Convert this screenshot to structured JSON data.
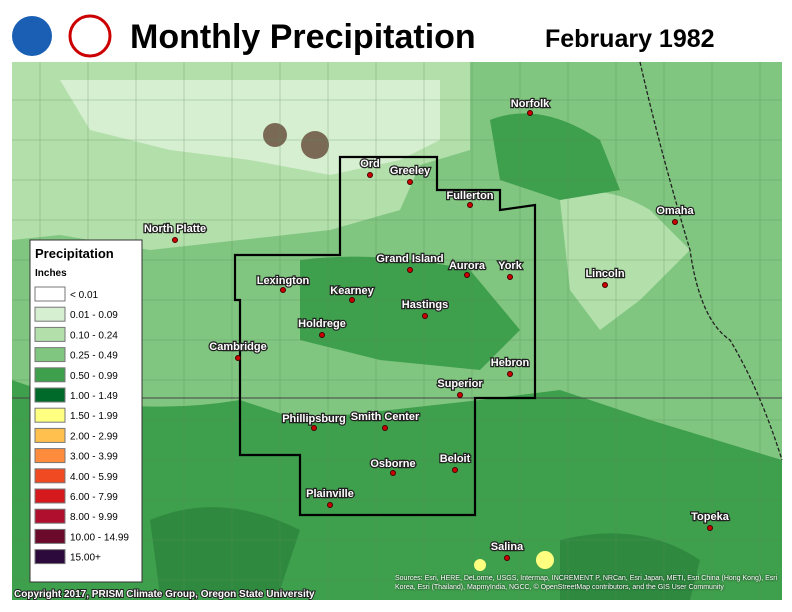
{
  "header": {
    "title": "Monthly Precipitation",
    "date": "February 1982"
  },
  "legend": {
    "title": "Precipitation",
    "unit": "Inches",
    "entries": [
      {
        "label": "< 0.01",
        "color": "#ffffff"
      },
      {
        "label": "0.01 - 0.09",
        "color": "#d6efd0"
      },
      {
        "label": "0.10 - 0.24",
        "color": "#b3dfab"
      },
      {
        "label": "0.25 - 0.49",
        "color": "#80c680"
      },
      {
        "label": "0.50 - 0.99",
        "color": "#3e9f4c"
      },
      {
        "label": "1.00 - 1.49",
        "color": "#006a2a"
      },
      {
        "label": "1.50 - 1.99",
        "color": "#ffff80"
      },
      {
        "label": "2.00 - 2.99",
        "color": "#ffc04d"
      },
      {
        "label": "3.00 - 3.99",
        "color": "#ff8c3c"
      },
      {
        "label": "4.00 - 5.99",
        "color": "#f04a23"
      },
      {
        "label": "6.00 - 7.99",
        "color": "#d6191c"
      },
      {
        "label": "8.00 - 9.99",
        "color": "#b0102e"
      },
      {
        "label": "10.00 - 14.99",
        "color": "#6b0a2a"
      },
      {
        "label": "15.00+",
        "color": "#2d0a3c"
      }
    ]
  },
  "cities": [
    "Norfolk",
    "Ord",
    "Greeley",
    "Fullerton",
    "North Platte",
    "Omaha",
    "Grand Island",
    "Aurora",
    "York",
    "Lincoln",
    "Lexington",
    "Kearney",
    "Hastings",
    "Holdrege",
    "Cambridge",
    "Hebron",
    "Superior",
    "Phillipsburg",
    "Smith Center",
    "Beloit",
    "Osborne",
    "Plainville",
    "Topeka",
    "Salina"
  ],
  "footer": {
    "copyright": "Copyright 2017, PRISM Climate Group, Oregon State University",
    "sources": "Sources: Esri, HERE, DeLorme, USGS, Intermap, INCREMENT P, NRCan, Esri Japan, METI, Esri China (Hong Kong), Esri Korea, Esri (Thailand), MapmyIndia, NGCC, © OpenStreetMap contributors, and the GIS User Community"
  }
}
